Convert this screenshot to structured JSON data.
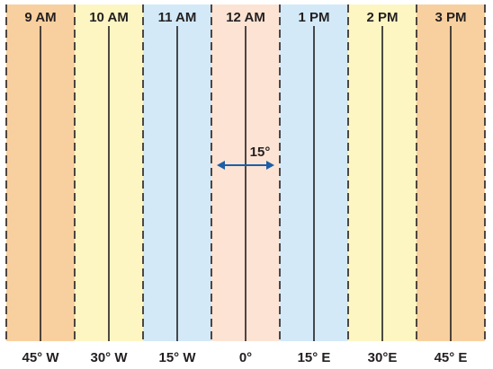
{
  "zones": [
    {
      "time": "9 AM",
      "longitude": "45° W",
      "color": "#f8d09f"
    },
    {
      "time": "10 AM",
      "longitude": "30° W",
      "color": "#fdf6c3"
    },
    {
      "time": "11 AM",
      "longitude": "15° W",
      "color": "#d3e9f8"
    },
    {
      "time": "12 AM",
      "longitude": "0°",
      "color": "#fce3d3"
    },
    {
      "time": "1 PM",
      "longitude": "15° E",
      "color": "#d3e9f8"
    },
    {
      "time": "2 PM",
      "longitude": "30°E",
      "color": "#fdf6c3"
    },
    {
      "time": "3 PM",
      "longitude": "45° E",
      "color": "#f8d09f"
    }
  ],
  "zone_width_label": "15°",
  "colors": {
    "meridian": "#231f20",
    "boundary": "#231f20",
    "arrow": "#1c5fa8"
  }
}
